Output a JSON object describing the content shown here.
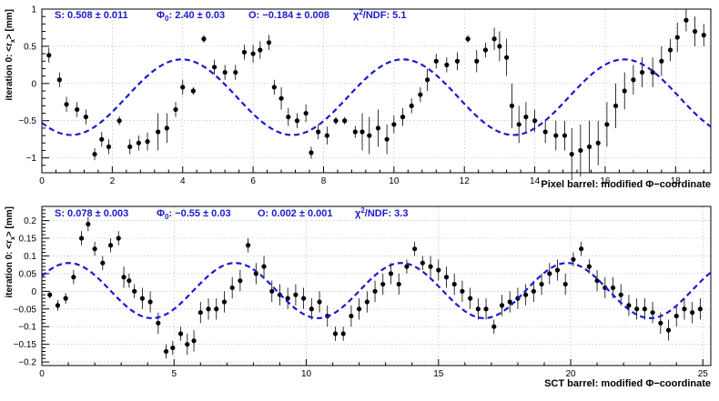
{
  "chart_data": [
    {
      "type": "scatter",
      "xlabel": "Pixel barrel: modified Φ−coordinate",
      "ylabel": "iteration 0: <r_x> [mm]",
      "xlim": [
        0,
        19
      ],
      "ylim": [
        -1.2,
        1.0
      ],
      "xticks": [
        0,
        2,
        4,
        6,
        8,
        10,
        12,
        14,
        16,
        18
      ],
      "yticks": [
        -1,
        -0.5,
        0,
        0.5,
        1
      ],
      "grid": true,
      "fit": {
        "S": 0.508,
        "phi0": 2.4,
        "O": -0.184,
        "color": "#1a1acc"
      },
      "stats": [
        "S:  0.508 ± 0.011",
        "Φ0: 2.40 ± 0.03",
        "O: −0.184 ± 0.008",
        "χ²/NDF: 5.1"
      ],
      "points": [
        [
          0.2,
          0.38,
          0.1
        ],
        [
          0.5,
          0.05,
          0.1
        ],
        [
          0.7,
          -0.28,
          0.1
        ],
        [
          1.0,
          -0.35,
          0.1
        ],
        [
          1.25,
          -0.45,
          0.1
        ],
        [
          1.5,
          -0.95,
          0.08
        ],
        [
          1.7,
          -0.75,
          0.1
        ],
        [
          1.9,
          -0.85,
          0.1
        ],
        [
          2.2,
          -0.5,
          0.06
        ],
        [
          2.5,
          -0.85,
          0.1
        ],
        [
          2.75,
          -0.8,
          0.1
        ],
        [
          3.0,
          -0.78,
          0.12
        ],
        [
          3.3,
          -0.65,
          0.25
        ],
        [
          3.55,
          -0.6,
          0.2
        ],
        [
          3.8,
          -0.35,
          0.1
        ],
        [
          4.0,
          -0.05,
          0.1
        ],
        [
          4.3,
          -0.1,
          0.05
        ],
        [
          4.6,
          0.6,
          0.05
        ],
        [
          4.9,
          0.22,
          0.1
        ],
        [
          5.2,
          0.15,
          0.1
        ],
        [
          5.5,
          0.15,
          0.1
        ],
        [
          5.75,
          0.42,
          0.1
        ],
        [
          6.0,
          0.4,
          0.12
        ],
        [
          6.2,
          0.45,
          0.12
        ],
        [
          6.45,
          0.55,
          0.1
        ],
        [
          6.6,
          -0.05,
          0.1
        ],
        [
          6.8,
          -0.2,
          0.15
        ],
        [
          7.0,
          -0.45,
          0.12
        ],
        [
          7.25,
          -0.5,
          0.1
        ],
        [
          7.5,
          -0.4,
          0.12
        ],
        [
          7.65,
          -0.93,
          0.08
        ],
        [
          7.85,
          -0.65,
          0.1
        ],
        [
          8.1,
          -0.7,
          0.12
        ],
        [
          8.35,
          -0.5,
          0.05
        ],
        [
          8.6,
          -0.5,
          0.05
        ],
        [
          8.9,
          -0.65,
          0.08
        ],
        [
          9.1,
          -0.65,
          0.25
        ],
        [
          9.3,
          -0.7,
          0.25
        ],
        [
          9.55,
          -0.6,
          0.25
        ],
        [
          9.8,
          -0.75,
          0.2
        ],
        [
          10.0,
          -0.55,
          0.12
        ],
        [
          10.25,
          -0.45,
          0.12
        ],
        [
          10.5,
          -0.3,
          0.1
        ],
        [
          10.75,
          -0.15,
          0.1
        ],
        [
          10.95,
          0.05,
          0.15
        ],
        [
          11.2,
          0.3,
          0.1
        ],
        [
          11.5,
          0.25,
          0.1
        ],
        [
          11.8,
          0.3,
          0.12
        ],
        [
          12.1,
          0.6,
          0.05
        ],
        [
          12.35,
          0.3,
          0.15
        ],
        [
          12.6,
          0.45,
          0.1
        ],
        [
          12.85,
          0.6,
          0.15
        ],
        [
          13.0,
          0.5,
          0.2
        ],
        [
          13.2,
          0.35,
          0.25
        ],
        [
          13.35,
          -0.3,
          0.3
        ],
        [
          13.55,
          -0.55,
          0.25
        ],
        [
          13.75,
          -0.45,
          0.2
        ],
        [
          14.0,
          -0.5,
          0.15
        ],
        [
          14.3,
          -0.65,
          0.15
        ],
        [
          14.6,
          -0.7,
          0.2
        ],
        [
          14.85,
          -0.7,
          0.2
        ],
        [
          15.05,
          -0.95,
          0.35
        ],
        [
          15.3,
          -0.9,
          0.35
        ],
        [
          15.55,
          -0.85,
          0.35
        ],
        [
          15.8,
          -0.8,
          0.3
        ],
        [
          16.05,
          -0.55,
          0.3
        ],
        [
          16.3,
          -0.3,
          0.3
        ],
        [
          16.55,
          -0.1,
          0.25
        ],
        [
          16.8,
          0.05,
          0.2
        ],
        [
          17.05,
          0.15,
          0.2
        ],
        [
          17.35,
          0.15,
          0.2
        ],
        [
          17.6,
          0.3,
          0.2
        ],
        [
          17.85,
          0.45,
          0.15
        ],
        [
          18.05,
          0.62,
          0.2
        ],
        [
          18.3,
          0.85,
          0.15
        ],
        [
          18.55,
          0.7,
          0.2
        ],
        [
          18.8,
          0.65,
          0.15
        ]
      ]
    },
    {
      "type": "scatter",
      "xlabel": "SCT barrel: modified Φ−coordinate",
      "ylabel": "iteration 0: <r_x> [mm]",
      "xlim": [
        0,
        25.3
      ],
      "ylim": [
        -0.21,
        0.24
      ],
      "xticks": [
        0,
        5,
        10,
        15,
        20,
        25
      ],
      "yticks": [
        -0.2,
        -0.15,
        -0.1,
        -0.05,
        0,
        0.05,
        0.1,
        0.15,
        0.2
      ],
      "grid": true,
      "fit": {
        "S": 0.078,
        "phi0": -0.55,
        "O": 0.002,
        "color": "#1a1acc"
      },
      "stats": [
        "S:  0.078 ± 0.003",
        "Φ0: −0.55 ± 0.03",
        "O: 0.002 ± 0.001",
        "χ²/NDF: 3.3"
      ],
      "points": [
        [
          0.3,
          -0.01,
          0.01
        ],
        [
          0.6,
          -0.04,
          0.015
        ],
        [
          0.9,
          -0.02,
          0.015
        ],
        [
          1.2,
          0.04,
          0.02
        ],
        [
          1.5,
          0.15,
          0.02
        ],
        [
          1.75,
          0.19,
          0.02
        ],
        [
          2.0,
          0.12,
          0.02
        ],
        [
          2.3,
          0.08,
          0.02
        ],
        [
          2.6,
          0.13,
          0.02
        ],
        [
          2.9,
          0.15,
          0.02
        ],
        [
          3.1,
          0.04,
          0.03
        ],
        [
          3.3,
          0.03,
          0.02
        ],
        [
          3.5,
          0.0,
          0.02
        ],
        [
          3.8,
          -0.02,
          0.03
        ],
        [
          4.1,
          -0.03,
          0.03
        ],
        [
          4.4,
          -0.09,
          0.03
        ],
        [
          4.7,
          -0.17,
          0.02
        ],
        [
          4.95,
          -0.16,
          0.02
        ],
        [
          5.25,
          -0.12,
          0.02
        ],
        [
          5.5,
          -0.15,
          0.03
        ],
        [
          5.75,
          -0.14,
          0.03
        ],
        [
          6.0,
          -0.06,
          0.03
        ],
        [
          6.3,
          -0.05,
          0.03
        ],
        [
          6.6,
          -0.05,
          0.03
        ],
        [
          6.9,
          -0.03,
          0.03
        ],
        [
          7.2,
          0.01,
          0.03
        ],
        [
          7.5,
          0.03,
          0.03
        ],
        [
          7.8,
          0.13,
          0.02
        ],
        [
          8.1,
          0.05,
          0.03
        ],
        [
          8.4,
          0.07,
          0.03
        ],
        [
          8.7,
          0.0,
          0.03
        ],
        [
          9.0,
          -0.01,
          0.03
        ],
        [
          9.3,
          -0.02,
          0.03
        ],
        [
          9.6,
          -0.01,
          0.03
        ],
        [
          9.9,
          -0.02,
          0.03
        ],
        [
          10.2,
          -0.05,
          0.03
        ],
        [
          10.5,
          -0.03,
          0.03
        ],
        [
          10.8,
          -0.07,
          0.03
        ],
        [
          11.1,
          -0.12,
          0.02
        ],
        [
          11.4,
          -0.12,
          0.02
        ],
        [
          11.7,
          -0.07,
          0.03
        ],
        [
          12.0,
          -0.05,
          0.03
        ],
        [
          12.3,
          -0.03,
          0.03
        ],
        [
          12.6,
          0.0,
          0.03
        ],
        [
          12.9,
          0.02,
          0.03
        ],
        [
          13.2,
          0.05,
          0.03
        ],
        [
          13.5,
          0.02,
          0.03
        ],
        [
          13.8,
          0.07,
          0.02
        ],
        [
          14.1,
          0.12,
          0.02
        ],
        [
          14.4,
          0.08,
          0.02
        ],
        [
          14.7,
          0.07,
          0.03
        ],
        [
          15.0,
          0.06,
          0.03
        ],
        [
          15.3,
          0.04,
          0.03
        ],
        [
          15.6,
          0.02,
          0.03
        ],
        [
          15.9,
          0.0,
          0.03
        ],
        [
          16.2,
          -0.02,
          0.03
        ],
        [
          16.5,
          -0.05,
          0.03
        ],
        [
          16.8,
          -0.05,
          0.03
        ],
        [
          17.1,
          -0.1,
          0.02
        ],
        [
          17.4,
          -0.04,
          0.03
        ],
        [
          17.7,
          -0.03,
          0.03
        ],
        [
          18.0,
          -0.02,
          0.03
        ],
        [
          18.3,
          -0.01,
          0.03
        ],
        [
          18.6,
          0.0,
          0.03
        ],
        [
          18.9,
          0.02,
          0.03
        ],
        [
          19.2,
          0.05,
          0.03
        ],
        [
          19.5,
          0.06,
          0.03
        ],
        [
          19.8,
          0.02,
          0.03
        ],
        [
          20.1,
          0.09,
          0.02
        ],
        [
          20.4,
          0.12,
          0.02
        ],
        [
          20.7,
          0.07,
          0.02
        ],
        [
          21.0,
          0.03,
          0.03
        ],
        [
          21.3,
          0.01,
          0.03
        ],
        [
          21.6,
          0.01,
          0.03
        ],
        [
          21.9,
          -0.01,
          0.03
        ],
        [
          22.2,
          -0.04,
          0.03
        ],
        [
          22.5,
          -0.05,
          0.03
        ],
        [
          22.8,
          -0.05,
          0.03
        ],
        [
          23.1,
          -0.06,
          0.03
        ],
        [
          23.4,
          -0.09,
          0.03
        ],
        [
          23.7,
          -0.11,
          0.03
        ],
        [
          24.0,
          -0.07,
          0.03
        ],
        [
          24.3,
          -0.05,
          0.03
        ],
        [
          24.6,
          -0.06,
          0.03
        ],
        [
          24.9,
          -0.05,
          0.03
        ]
      ]
    }
  ]
}
